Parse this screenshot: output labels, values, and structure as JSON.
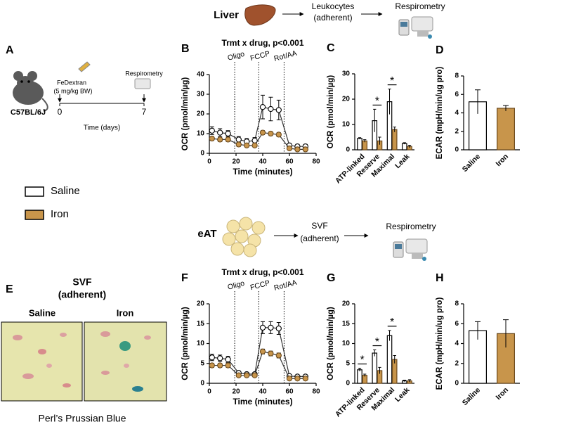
{
  "workflow_liver": {
    "tissue": "Liver",
    "step2": [
      "Leukocytes",
      "(adherent)"
    ],
    "step3": "Respirometry"
  },
  "panel_a": {
    "panel": "A",
    "strain": "C57BL/6J",
    "treatment": [
      "FeDextran",
      "(5 mg/kg BW)"
    ],
    "endpoint": "Respirometry",
    "timeline_ticks": [
      0,
      7
    ],
    "timeline_label": "Time (days)"
  },
  "panel_e": {
    "panel": "E",
    "title": [
      "SVF",
      "(adherent)"
    ],
    "images": [
      "Saline",
      "Iron"
    ],
    "caption": "Perl’s Prussian Blue"
  },
  "workflow_eat": {
    "tissue": "eAT",
    "step2": [
      "SVF",
      "(adherent)"
    ],
    "step3": "Respirometry"
  },
  "chart_data": [
    {
      "panel": "B",
      "type": "line",
      "title": "Trmt x drug, p<0.001",
      "x_label": "Time (minutes)",
      "y_label": "OCR (pmol/min/µg)",
      "xlim": [
        0,
        80
      ],
      "xticks": [
        0,
        20,
        40,
        60,
        80
      ],
      "ylim": [
        0,
        40
      ],
      "yticks": [
        0,
        10,
        20,
        30,
        40
      ],
      "injections": [
        {
          "label": "Oligo",
          "x": 19
        },
        {
          "label": "FCCP",
          "x": 37
        },
        {
          "label": "Rot/AA",
          "x": 56
        }
      ],
      "x": [
        2,
        8,
        14,
        22,
        28,
        34,
        40,
        46,
        52,
        60,
        66,
        72
      ],
      "series": [
        {
          "name": "Saline",
          "color": "#ffffff",
          "values": [
            11.5,
            10.5,
            10,
            7,
            6,
            6.5,
            23.5,
            22.5,
            22,
            4,
            3.5,
            3.5
          ],
          "errors": [
            2,
            2,
            1.5,
            1.5,
            1.5,
            1.5,
            6,
            6,
            5,
            1,
            1,
            1
          ]
        },
        {
          "name": "Iron",
          "color": "#c8954b",
          "values": [
            7.5,
            7,
            7,
            4.5,
            4,
            4,
            10.5,
            10,
            9.5,
            2.5,
            2,
            2
          ],
          "errors": [
            1,
            1,
            1,
            1,
            0.8,
            0.8,
            1,
            1,
            1,
            0.5,
            0.5,
            0.5
          ]
        }
      ]
    },
    {
      "panel": "C",
      "type": "bar",
      "y_label": "OCR (pmol/min/µg)",
      "ylim": [
        0,
        30
      ],
      "yticks": [
        0,
        10,
        20,
        30
      ],
      "categories": [
        "ATP-linked",
        "Reserve",
        "Maximal",
        "Leak"
      ],
      "series": [
        {
          "color": "#ffffff",
          "values": [
            4.5,
            11.5,
            19,
            2.5
          ],
          "errors": [
            0.3,
            4.5,
            5,
            0.3
          ]
        },
        {
          "color": "#c8954b",
          "values": [
            3.5,
            3.5,
            8,
            1.3
          ],
          "errors": [
            0.5,
            1.5,
            1,
            0.5
          ]
        }
      ],
      "significance": [
        {
          "category": 1,
          "text": "*"
        },
        {
          "category": 2,
          "text": "*"
        }
      ]
    },
    {
      "panel": "D",
      "type": "bar",
      "y_label": "ECAR (mpH/min/ug pro)",
      "ylim": [
        0,
        8
      ],
      "yticks": [
        0,
        2,
        4,
        6,
        8
      ],
      "categories": [
        "Saline",
        "Iron"
      ],
      "values": [
        5.2,
        4.5
      ],
      "errors": [
        1.3,
        0.3
      ],
      "colors": [
        "#ffffff",
        "#c8954b"
      ]
    },
    {
      "panel": "F",
      "type": "line",
      "title": "Trmt x drug, p<0.001",
      "x_label": "Time (minutes)",
      "y_label": "OCR (pmol/min/µg)",
      "xlim": [
        0,
        80
      ],
      "xticks": [
        0,
        20,
        40,
        60,
        80
      ],
      "ylim": [
        0,
        20
      ],
      "yticks": [
        0,
        5,
        10,
        15,
        20
      ],
      "injections": [
        {
          "label": "Oligo",
          "x": 19
        },
        {
          "label": "FCCP",
          "x": 37
        },
        {
          "label": "Rot/AA",
          "x": 56
        }
      ],
      "x": [
        2,
        8,
        14,
        22,
        28,
        34,
        40,
        46,
        52,
        60,
        66,
        72
      ],
      "series": [
        {
          "color": "#ffffff",
          "values": [
            6.5,
            6.3,
            6,
            2.6,
            2.3,
            2.3,
            14,
            14,
            13.8,
            1.8,
            1.7,
            1.7
          ],
          "errors": [
            0.8,
            0.8,
            0.8,
            0.5,
            0.4,
            0.4,
            1.5,
            1.5,
            1.5,
            0.4,
            0.4,
            0.4
          ]
        },
        {
          "color": "#c8954b",
          "values": [
            4.5,
            4.5,
            4.5,
            2,
            2,
            2,
            8,
            7.5,
            7,
            1.2,
            1.2,
            1.2
          ],
          "errors": [
            0.5,
            0.5,
            0.5,
            0.3,
            0.3,
            0.3,
            0.6,
            0.6,
            0.6,
            0.3,
            0.3,
            0.3
          ]
        }
      ]
    },
    {
      "panel": "G",
      "type": "bar",
      "y_label": "OCR (pmol/min/µg)",
      "ylim": [
        0,
        20
      ],
      "yticks": [
        0,
        5,
        10,
        15,
        20
      ],
      "categories": [
        "ATP-linked",
        "Reserve",
        "Maximal",
        "Leak"
      ],
      "series": [
        {
          "color": "#ffffff",
          "values": [
            3.4,
            7.6,
            12,
            0.6
          ],
          "errors": [
            0.4,
            0.8,
            1.3,
            0.2
          ]
        },
        {
          "color": "#c8954b",
          "values": [
            2,
            3.2,
            6,
            0.6
          ],
          "errors": [
            0.3,
            0.8,
            1,
            0.3
          ]
        }
      ],
      "significance": [
        {
          "category": 0,
          "text": "*"
        },
        {
          "category": 1,
          "text": "*"
        },
        {
          "category": 2,
          "text": "*"
        }
      ]
    },
    {
      "panel": "H",
      "type": "bar",
      "y_label": "ECAR (mpH/min/ug pro)",
      "ylim": [
        0,
        8
      ],
      "yticks": [
        0,
        2,
        4,
        6,
        8
      ],
      "categories": [
        "Saline",
        "Iron"
      ],
      "values": [
        5.3,
        5.0
      ],
      "errors": [
        0.9,
        1.4
      ],
      "colors": [
        "#ffffff",
        "#c8954b"
      ]
    }
  ]
}
